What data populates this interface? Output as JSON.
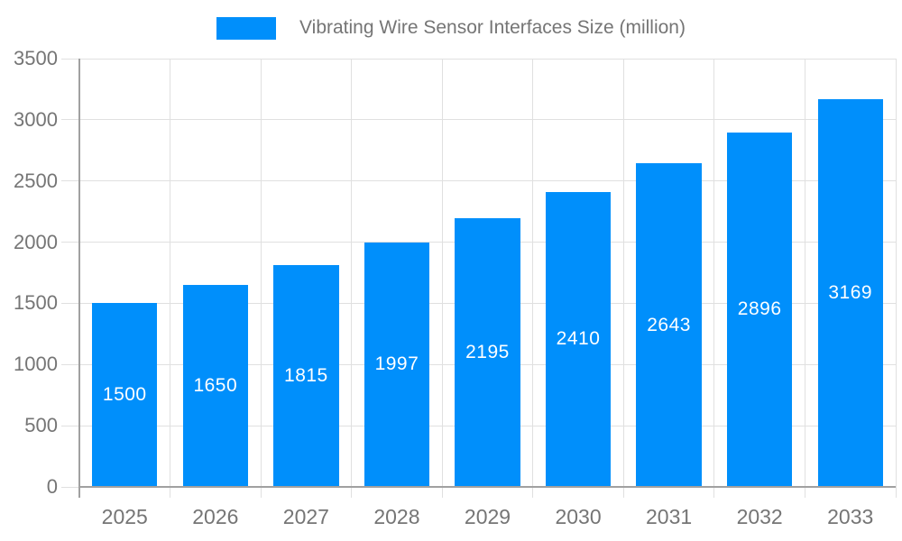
{
  "legend": {
    "label": "Vibrating Wire Sensor Interfaces Size (million)"
  },
  "chart_data": {
    "type": "bar",
    "title": "Vibrating Wire Sensor Interfaces Size (million)",
    "categories": [
      "2025",
      "2026",
      "2027",
      "2028",
      "2029",
      "2030",
      "2031",
      "2032",
      "2033"
    ],
    "series": [
      {
        "name": "Vibrating Wire Sensor Interfaces Size (million)",
        "values": [
          1500,
          1650,
          1815,
          1997,
          2195,
          2410,
          2643,
          2896,
          3169
        ]
      }
    ],
    "xlabel": "",
    "ylabel": "",
    "ylim": [
      0,
      3500
    ],
    "yticks": [
      0,
      500,
      1000,
      1500,
      2000,
      2500,
      3000,
      3500
    ],
    "grid": true,
    "legend_position": "top-center",
    "value_labels": "inside-center",
    "colors": {
      "bar": "#008ffb",
      "grid": "#e0e0e0",
      "axis": "#a0a0a0",
      "tick_text": "#757575",
      "value_label_text": "#ffffff"
    }
  }
}
